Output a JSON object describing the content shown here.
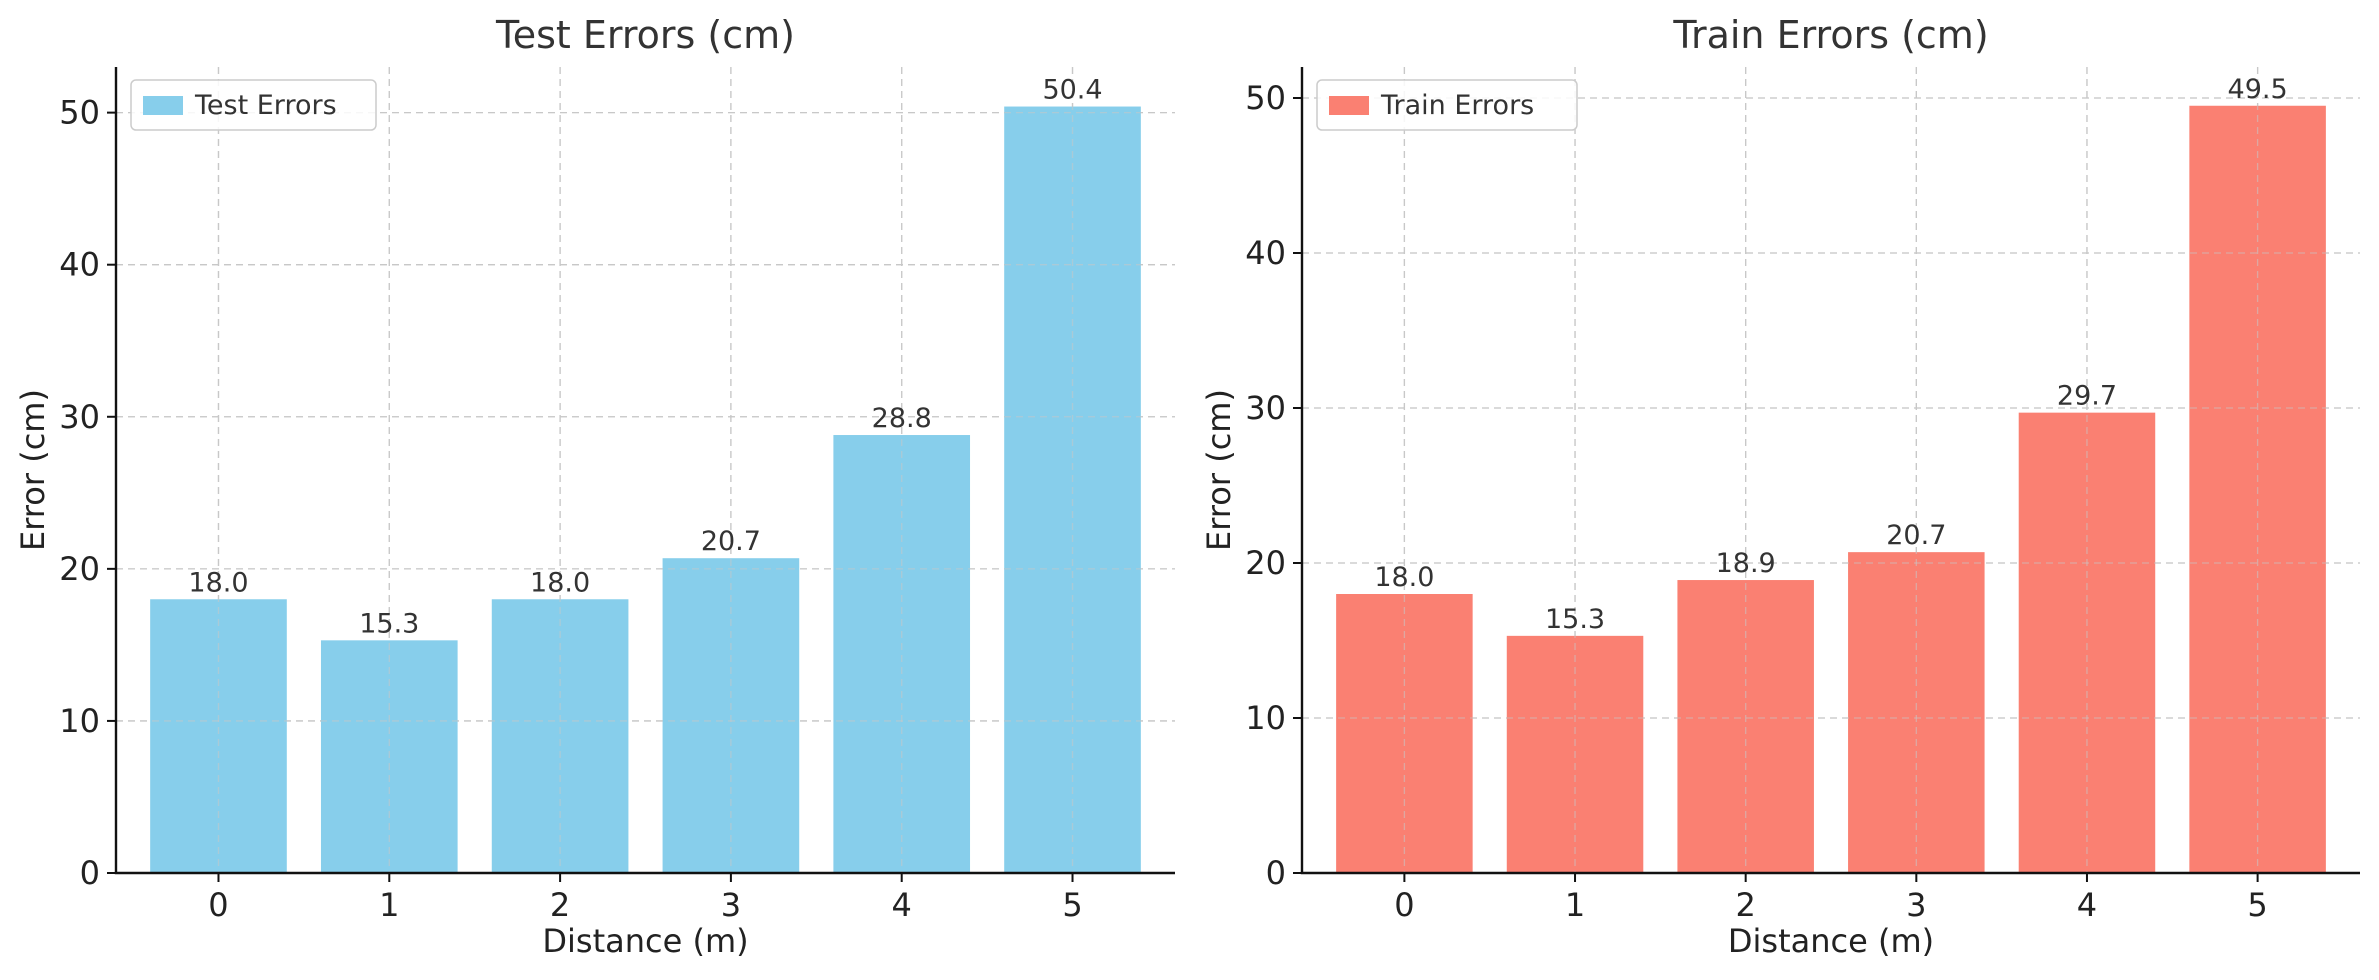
{
  "chart_data": [
    {
      "type": "bar",
      "title": "Test Errors (cm)",
      "xlabel": "Distance (m)",
      "ylabel": "Error (cm)",
      "categories": [
        "0",
        "1",
        "2",
        "3",
        "4",
        "5"
      ],
      "values": [
        18.0,
        15.3,
        18.0,
        20.7,
        28.8,
        50.4
      ],
      "value_labels": [
        "18.0",
        "15.3",
        "18.0",
        "20.7",
        "28.8",
        "50.4"
      ],
      "ylim": [
        0,
        53
      ],
      "yticks": [
        0,
        10,
        20,
        30,
        40,
        50
      ],
      "legend": "Test Errors",
      "legend_position": "top-left",
      "color": "#87CEEB",
      "grid": true
    },
    {
      "type": "bar",
      "title": "Train Errors (cm)",
      "xlabel": "Distance (m)",
      "ylabel": "Error (cm)",
      "categories": [
        "0",
        "1",
        "2",
        "3",
        "4",
        "5"
      ],
      "values": [
        18.0,
        15.3,
        18.9,
        20.7,
        29.7,
        49.5
      ],
      "value_labels": [
        "18.0",
        "15.3",
        "18.9",
        "20.7",
        "29.7",
        "49.5"
      ],
      "ylim": [
        0,
        52
      ],
      "yticks": [
        0,
        10,
        20,
        30,
        40,
        50
      ],
      "legend": "Train Errors",
      "legend_position": "top-left",
      "color": "#FA8072",
      "grid": true
    }
  ]
}
